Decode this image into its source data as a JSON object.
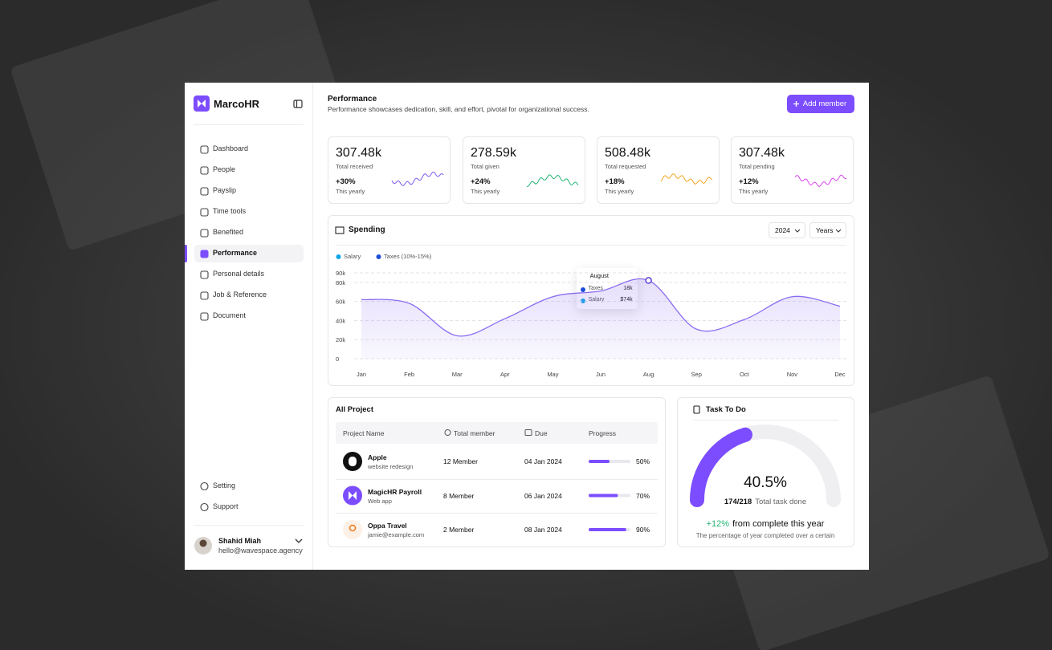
{
  "sidebar": {
    "brand": "MarcoHR",
    "nav": [
      {
        "label": "Dashboard"
      },
      {
        "label": "People"
      },
      {
        "label": "Payslip"
      },
      {
        "label": "Time tools"
      },
      {
        "label": "Benefited"
      },
      {
        "label": "Performance",
        "active": true
      },
      {
        "label": "Personal details"
      },
      {
        "label": "Job & Reference"
      },
      {
        "label": "Document"
      }
    ],
    "footer_nav": [
      "Setting",
      "Support"
    ],
    "user": {
      "name": "Shahid Miah",
      "email": "hello@wavespace.agency"
    }
  },
  "header": {
    "title": "Performance",
    "subtitle": "Performance showcases dedication, skill, and effort, pivotal for organizational success.",
    "button": "Add member"
  },
  "stats": [
    {
      "value": "307.48k",
      "label": "Total received",
      "change": "+30%",
      "period": "This yearly",
      "color": "#7c5cf0"
    },
    {
      "value": "278.59k",
      "label": "Total given",
      "change": "+24%",
      "period": "This yearly",
      "color": "#22b573"
    },
    {
      "value": "508.48k",
      "label": "Total requested",
      "change": "+18%",
      "period": "This yearly",
      "color": "#f5a623"
    },
    {
      "value": "307.48k",
      "label": "Total pending",
      "change": "+12%",
      "period": "This yearly",
      "color": "#d946ef"
    }
  ],
  "spending": {
    "type": "line",
    "title": "Spending",
    "filters": [
      "2024",
      "Years"
    ],
    "legend": [
      {
        "name": "Salary",
        "color": "#0ea5e9"
      },
      {
        "name": "Taxes (10%-15%)",
        "color": "#1d4ed8"
      }
    ],
    "categories": [
      "Jan",
      "Feb",
      "Mar",
      "Apr",
      "May",
      "Jun",
      "Aug",
      "Sep",
      "Oct",
      "Nov",
      "Dec"
    ],
    "values": [
      62000,
      58000,
      24000,
      42000,
      65000,
      71000,
      82000,
      31000,
      41000,
      65000,
      55000
    ],
    "color": "#8b6cf0",
    "ylim": [
      0,
      90000
    ],
    "yticks": [
      0,
      {
        "value": 20000,
        "label": "20k"
      },
      {
        "value": 40000,
        "label": "40k"
      },
      {
        "value": 60000,
        "label": "60k"
      },
      {
        "value": 80000,
        "label": "80k"
      },
      {
        "value": 90000,
        "label": "90k"
      }
    ],
    "grid": true,
    "tooltip": {
      "title": "August",
      "rows": [
        {
          "name": "Taxes",
          "value": "18k"
        },
        {
          "name": "Salary",
          "value": "$74k"
        }
      ]
    }
  },
  "projects": {
    "title": "All Project",
    "columns": [
      "Project Name",
      "Total member",
      "Due",
      "Progress"
    ],
    "rows": [
      {
        "name": "Apple",
        "subtitle": "website redesign",
        "members": "12 Member",
        "due": "04 Jan 2024",
        "progress": {
          "value": 50,
          "label": "50%"
        }
      },
      {
        "name": "MagicHR Payroll",
        "subtitle": "Web app",
        "members": "8 Member",
        "due": "06 Jan 2024",
        "progress": {
          "value": 70,
          "label": "70%"
        }
      },
      {
        "name": "Oppa Travel",
        "subtitle": "jamie@example.com",
        "members": "2 Member",
        "due": "08 Jan 2024",
        "progress": {
          "value": 90,
          "label": "90%"
        }
      }
    ]
  },
  "tasks": {
    "title": "Task To Do",
    "percent": {
      "value": 40.5,
      "label": "40.5%"
    },
    "count": "174/218",
    "count_label": "Total task done",
    "change": "+12%",
    "change_text": "from complete this year",
    "note": "The percentage of year completed over a certain"
  }
}
